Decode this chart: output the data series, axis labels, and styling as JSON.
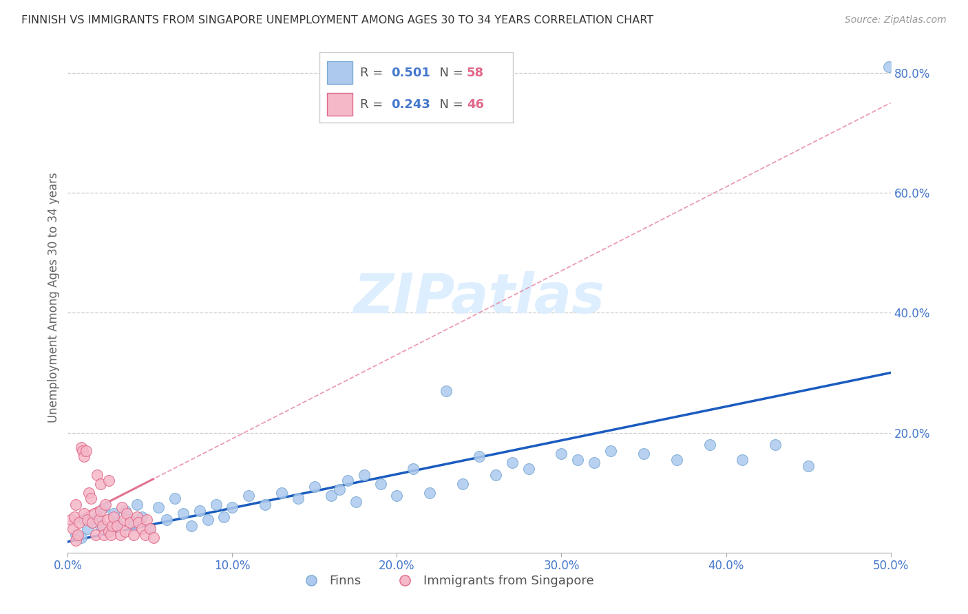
{
  "title": "FINNISH VS IMMIGRANTS FROM SINGAPORE UNEMPLOYMENT AMONG AGES 30 TO 34 YEARS CORRELATION CHART",
  "source": "Source: ZipAtlas.com",
  "ylabel": "Unemployment Among Ages 30 to 34 years",
  "xlim": [
    0.0,
    0.5
  ],
  "ylim": [
    0.0,
    0.85
  ],
  "finns_color": "#adc9ee",
  "finns_edge_color": "#7aaad4",
  "immigrants_color": "#f5b8c8",
  "immigrants_edge_color": "#e06888",
  "blue_line_color": "#1a5cbf",
  "pink_line_color": "#e06888",
  "grid_color": "#cccccc",
  "background_color": "#ffffff",
  "title_color": "#333333",
  "watermark_color": "#ddeeff",
  "watermark_text": "ZIPatlas",
  "R_finns": "0.501",
  "N_finns": "58",
  "R_imm": "0.243",
  "N_imm": "46",
  "legend_label_color": "#555555",
  "legend_R_color": "#4477cc",
  "legend_N_color": "#e06888",
  "axis_tick_color": "#4477cc",
  "finns_x": [
    0.005,
    0.008,
    0.01,
    0.012,
    0.015,
    0.018,
    0.02,
    0.022,
    0.025,
    0.028,
    0.03,
    0.035,
    0.038,
    0.04,
    0.042,
    0.045,
    0.05,
    0.055,
    0.06,
    0.065,
    0.07,
    0.075,
    0.08,
    0.085,
    0.09,
    0.095,
    0.1,
    0.11,
    0.12,
    0.13,
    0.14,
    0.15,
    0.16,
    0.165,
    0.17,
    0.175,
    0.18,
    0.19,
    0.2,
    0.21,
    0.22,
    0.23,
    0.24,
    0.25,
    0.26,
    0.27,
    0.28,
    0.3,
    0.31,
    0.32,
    0.33,
    0.35,
    0.37,
    0.39,
    0.41,
    0.43,
    0.45,
    0.499
  ],
  "finns_y": [
    0.03,
    0.025,
    0.055,
    0.04,
    0.05,
    0.06,
    0.045,
    0.075,
    0.035,
    0.065,
    0.05,
    0.07,
    0.055,
    0.045,
    0.08,
    0.06,
    0.04,
    0.075,
    0.055,
    0.09,
    0.065,
    0.045,
    0.07,
    0.055,
    0.08,
    0.06,
    0.075,
    0.095,
    0.08,
    0.1,
    0.09,
    0.11,
    0.095,
    0.105,
    0.12,
    0.085,
    0.13,
    0.115,
    0.095,
    0.14,
    0.1,
    0.27,
    0.115,
    0.16,
    0.13,
    0.15,
    0.14,
    0.165,
    0.155,
    0.15,
    0.17,
    0.165,
    0.155,
    0.18,
    0.155,
    0.18,
    0.145,
    0.81
  ],
  "immigrants_x": [
    0.002,
    0.003,
    0.004,
    0.005,
    0.005,
    0.006,
    0.007,
    0.008,
    0.009,
    0.01,
    0.01,
    0.011,
    0.012,
    0.013,
    0.014,
    0.015,
    0.016,
    0.017,
    0.018,
    0.019,
    0.02,
    0.02,
    0.021,
    0.022,
    0.023,
    0.024,
    0.025,
    0.025,
    0.026,
    0.027,
    0.028,
    0.03,
    0.032,
    0.033,
    0.034,
    0.035,
    0.036,
    0.038,
    0.04,
    0.042,
    0.043,
    0.045,
    0.047,
    0.048,
    0.05,
    0.052
  ],
  "immigrants_y": [
    0.055,
    0.04,
    0.06,
    0.02,
    0.08,
    0.03,
    0.05,
    0.175,
    0.17,
    0.065,
    0.16,
    0.17,
    0.055,
    0.1,
    0.09,
    0.05,
    0.065,
    0.03,
    0.13,
    0.055,
    0.07,
    0.115,
    0.045,
    0.03,
    0.08,
    0.055,
    0.035,
    0.12,
    0.03,
    0.045,
    0.06,
    0.045,
    0.03,
    0.075,
    0.055,
    0.035,
    0.065,
    0.05,
    0.03,
    0.06,
    0.05,
    0.04,
    0.03,
    0.055,
    0.04,
    0.025
  ]
}
